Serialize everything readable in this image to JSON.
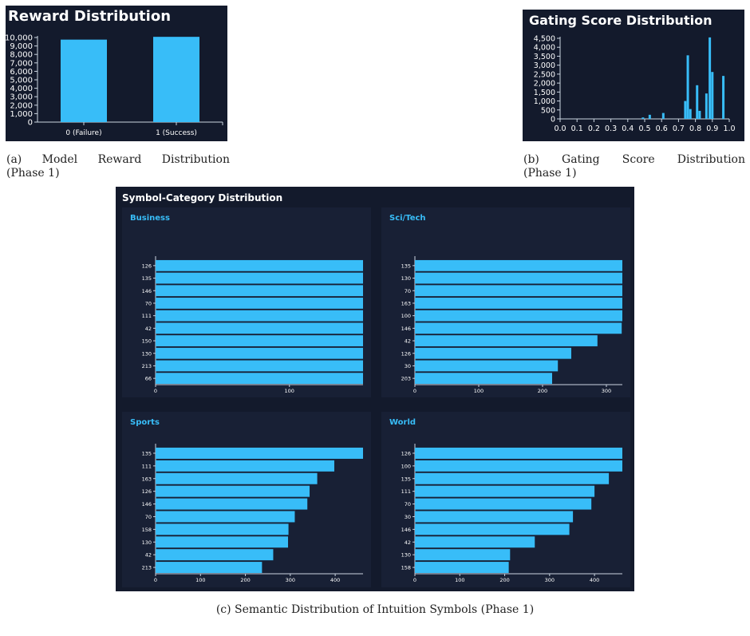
{
  "colors": {
    "bar": "#38bdf8",
    "panel_bg": "#131a2c",
    "subpanel_bg": "#182035",
    "axis": "#cbd5e1",
    "text": "#ffffff"
  },
  "captions": {
    "a": {
      "label": "(a)",
      "w1": "Model",
      "w2": "Reward",
      "w3": "Distribution",
      "line2": "(Phase 1)"
    },
    "b": {
      "label": "(b)",
      "w1": "Gating",
      "w2": "Score",
      "w3": "Distribution",
      "line2": "(Phase 1)"
    },
    "c": "(c) Semantic Distribution of Intuition Symbols (Phase 1)"
  },
  "panels": {
    "reward_title": "Reward Distribution",
    "gating_title": "Gating Score Distribution",
    "symbol_title": "Symbol-Category Distribution"
  },
  "chart_data": [
    {
      "id": "reward",
      "type": "bar",
      "title": "Reward Distribution",
      "categories": [
        "0 (Failure)",
        "1 (Success)"
      ],
      "values": [
        9750,
        10080
      ],
      "ylim": [
        0,
        10000
      ],
      "yticks": [
        0,
        1000,
        2000,
        3000,
        4000,
        5000,
        6000,
        7000,
        8000,
        9000,
        10000
      ],
      "ytick_labels": [
        "0",
        "1,000",
        "2,000",
        "3,000",
        "4,000",
        "5,000",
        "6,000",
        "7,000",
        "8,000",
        "9,000",
        "10,000"
      ]
    },
    {
      "id": "gating",
      "type": "bar",
      "title": "Gating Score Distribution",
      "x": [
        0.49,
        0.53,
        0.61,
        0.74,
        0.755,
        0.77,
        0.81,
        0.825,
        0.865,
        0.885,
        0.9,
        0.965
      ],
      "values": [
        80,
        230,
        330,
        1000,
        3550,
        550,
        1880,
        450,
        1420,
        4550,
        2620,
        2400
      ],
      "xlim": [
        0,
        1
      ],
      "ylim": [
        0,
        4500
      ],
      "xticks": [
        "0.0",
        "0.1",
        "0.2",
        "0.3",
        "0.4",
        "0.5",
        "0.6",
        "0.7",
        "0.8",
        "0.9",
        "1.0"
      ],
      "yticks": [
        0,
        500,
        1000,
        1500,
        2000,
        2500,
        3000,
        3500,
        4000,
        4500
      ],
      "ytick_labels": [
        "0",
        "500",
        "1,000",
        "1,500",
        "2,000",
        "2,500",
        "3,000",
        "3,500",
        "4,000",
        "4,500"
      ]
    },
    {
      "id": "business",
      "type": "bar",
      "orientation": "horizontal",
      "title": "Business",
      "categories": [
        "126",
        "135",
        "146",
        "70",
        "111",
        "42",
        "150",
        "130",
        "213",
        "66"
      ],
      "values": [
        155,
        155,
        155,
        155,
        155,
        155,
        155,
        155,
        155,
        155
      ],
      "xlim": [
        0,
        155
      ],
      "xticks": [
        0,
        100
      ]
    },
    {
      "id": "scitech",
      "type": "bar",
      "orientation": "horizontal",
      "title": "Sci/Tech",
      "categories": [
        "135",
        "130",
        "70",
        "163",
        "100",
        "146",
        "42",
        "126",
        "30",
        "203"
      ],
      "values": [
        325,
        325,
        325,
        325,
        325,
        324,
        286,
        245,
        224,
        215
      ],
      "xlim": [
        0,
        325
      ],
      "xticks": [
        0,
        100,
        200,
        300
      ]
    },
    {
      "id": "sports",
      "type": "bar",
      "orientation": "horizontal",
      "title": "Sports",
      "categories": [
        "135",
        "111",
        "163",
        "126",
        "146",
        "70",
        "158",
        "130",
        "42",
        "213"
      ],
      "values": [
        462,
        398,
        360,
        343,
        338,
        310,
        296,
        295,
        262,
        237
      ],
      "xlim": [
        0,
        462
      ],
      "xticks": [
        0,
        100,
        200,
        300,
        400
      ]
    },
    {
      "id": "world",
      "type": "bar",
      "orientation": "horizontal",
      "title": "World",
      "categories": [
        "126",
        "100",
        "135",
        "111",
        "70",
        "30",
        "146",
        "42",
        "130",
        "158"
      ],
      "values": [
        462,
        462,
        432,
        400,
        393,
        352,
        344,
        267,
        212,
        209
      ],
      "xlim": [
        0,
        462
      ],
      "xticks": [
        0,
        100,
        200,
        300,
        400
      ]
    }
  ]
}
